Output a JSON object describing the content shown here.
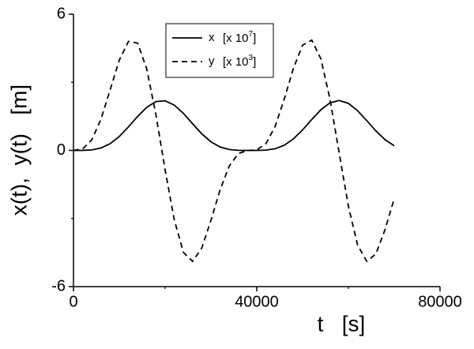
{
  "chart_data": {
    "type": "line",
    "x_label": "t   [s]",
    "y_label": "x(t),  y(t)   [m]",
    "x": [
      0,
      2000,
      4000,
      6000,
      8000,
      10000,
      12000,
      14000,
      16000,
      18000,
      20000,
      22000,
      24000,
      26000,
      28000,
      30000,
      32000,
      34000,
      36000,
      38000,
      40000,
      42000,
      44000,
      46000,
      48000,
      50000,
      52000,
      54000,
      56000,
      58000,
      60000,
      62000,
      64000,
      66000,
      68000,
      70000
    ],
    "series": [
      {
        "name": "x",
        "multiplier_prefix": "[x 10",
        "exponent": "7",
        "multiplier_suffix": "]",
        "color": "#000000",
        "line_style": "solid",
        "values": [
          0,
          0.0015,
          0.023,
          0.107,
          0.297,
          0.614,
          1.037,
          1.498,
          1.901,
          2.151,
          2.186,
          1.996,
          1.63,
          1.175,
          0.732,
          0.379,
          0.151,
          0.039,
          0.004,
          0,
          0.0004,
          0.012,
          0.072,
          0.227,
          0.506,
          0.903,
          1.362,
          1.792,
          2.097,
          2.2,
          2.074,
          1.753,
          1.315,
          0.859,
          0.472,
          0.206
        ]
      },
      {
        "name": "y",
        "multiplier_prefix": "[x 10",
        "exponent": "3",
        "multiplier_suffix": "]",
        "color": "#000000",
        "line_style": "dashed",
        "values": [
          0,
          0.063,
          0.468,
          1.375,
          2.67,
          3.978,
          4.803,
          4.726,
          3.586,
          1.566,
          -0.855,
          -3.055,
          -4.494,
          -4.888,
          -4.299,
          -3.083,
          -1.735,
          -0.687,
          -0.137,
          -0.002,
          0.022,
          0.296,
          1.051,
          2.26,
          3.614,
          4.635,
          4.86,
          4.035,
          2.24,
          -0.124,
          -2.455,
          -4.166,
          -4.883,
          -4.562,
          -3.485,
          -2.124
        ]
      }
    ],
    "xlim": [
      0,
      80000
    ],
    "ylim": [
      -6,
      6
    ],
    "xticks": [
      0,
      40000,
      80000
    ],
    "yticks": [
      -6,
      0,
      6
    ],
    "xminorticks": [
      20000,
      60000
    ],
    "yminorticks": [
      -3,
      3
    ],
    "grid": false,
    "legend": "upper center"
  }
}
